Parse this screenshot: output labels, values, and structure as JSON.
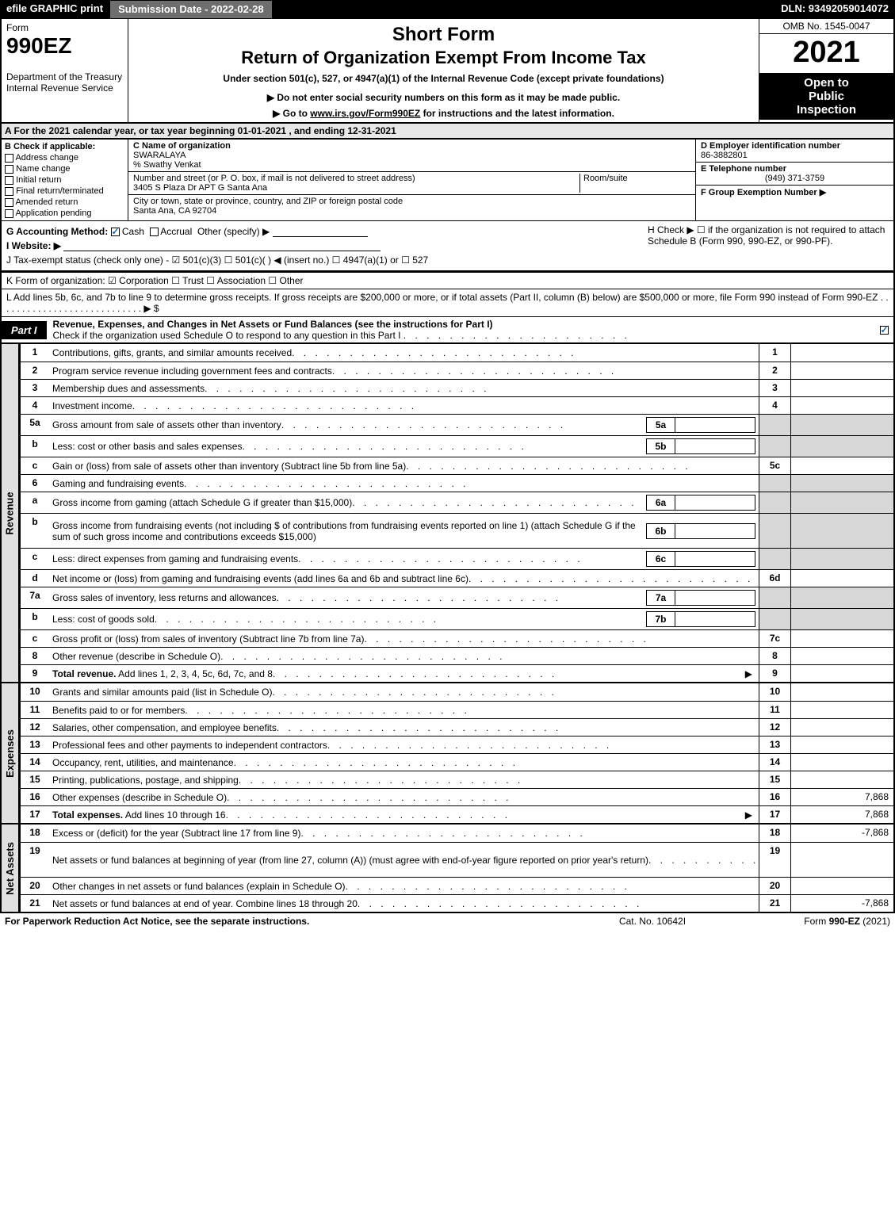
{
  "top_bar": {
    "efile": "efile GRAPHIC print",
    "submission": "Submission Date - 2022-02-28",
    "dln": "DLN: 93492059014072"
  },
  "header": {
    "form_word": "Form",
    "form_name": "990EZ",
    "dept": "Department of the Treasury\nInternal Revenue Service",
    "short_form": "Short Form",
    "return_title": "Return of Organization Exempt From Income Tax",
    "under": "Under section 501(c), 527, or 4947(a)(1) of the Internal Revenue Code (except private foundations)",
    "sub1": "▶ Do not enter social security numbers on this form as it may be made public.",
    "sub2_pre": "▶ Go to ",
    "sub2_link": "www.irs.gov/Form990EZ",
    "sub2_post": " for instructions and the latest information.",
    "omb": "OMB No. 1545-0047",
    "year": "2021",
    "open1": "Open to",
    "open2": "Public",
    "open3": "Inspection"
  },
  "row_A": "A  For the 2021 calendar year, or tax year beginning 01-01-2021 , and ending 12-31-2021",
  "B": {
    "hdr": "B  Check if applicable:",
    "opts": [
      "Address change",
      "Name change",
      "Initial return",
      "Final return/terminated",
      "Amended return",
      "Application pending"
    ]
  },
  "C": {
    "name_lbl": "C Name of organization",
    "name": "SWARALAYA",
    "care_of": "% Swathy Venkat",
    "addr_lbl": "Number and street (or P. O. box, if mail is not delivered to street address)",
    "addr": "3405 S Plaza Dr APT G Santa Ana",
    "room_lbl": "Room/suite",
    "city_lbl": "City or town, state or province, country, and ZIP or foreign postal code",
    "city": "Santa Ana, CA  92704"
  },
  "DEF": {
    "D_lbl": "D Employer identification number",
    "D_val": "86-3882801",
    "E_lbl": "E Telephone number",
    "E_val": "(949) 371-3759",
    "F_lbl": "F Group Exemption Number  ▶"
  },
  "G": {
    "label": "G Accounting Method:",
    "cash": "Cash",
    "accrual": "Accrual",
    "other": "Other (specify) ▶"
  },
  "H": "H  Check ▶  ☐  if the organization is not required to attach Schedule B (Form 990, 990-EZ, or 990-PF).",
  "I": "I Website: ▶",
  "J": "J Tax-exempt status (check only one) -  ☑ 501(c)(3)  ☐ 501(c)(  ) ◀ (insert no.)  ☐ 4947(a)(1) or  ☐ 527",
  "K": "K Form of organization:   ☑ Corporation   ☐ Trust   ☐ Association   ☐ Other",
  "L": "L Add lines 5b, 6c, and 7b to line 9 to determine gross receipts. If gross receipts are $200,000 or more, or if total assets (Part II, column (B) below) are $500,000 or more, file Form 990 instead of Form 990-EZ  . . . . . . . . . . . . . . . . . . . . . . . . . . . .  ▶ $",
  "part1": {
    "tab": "Part I",
    "title": "Revenue, Expenses, and Changes in Net Assets or Fund Balances (see the instructions for Part I)",
    "check": "Check if the organization used Schedule O to respond to any question in this Part I"
  },
  "sections": {
    "revenue": "Revenue",
    "expenses": "Expenses",
    "netassets": "Net Assets"
  },
  "lines": [
    {
      "n": "1",
      "desc": "Contributions, gifts, grants, and similar amounts received",
      "rt": "1",
      "val": ""
    },
    {
      "n": "2",
      "desc": "Program service revenue including government fees and contracts",
      "rt": "2",
      "val": ""
    },
    {
      "n": "3",
      "desc": "Membership dues and assessments",
      "rt": "3",
      "val": ""
    },
    {
      "n": "4",
      "desc": "Investment income",
      "rt": "4",
      "val": ""
    },
    {
      "n": "5a",
      "desc": "Gross amount from sale of assets other than inventory",
      "sub": "5a",
      "shade": true
    },
    {
      "n": "b",
      "desc": "Less: cost or other basis and sales expenses",
      "sub": "5b",
      "shade": true
    },
    {
      "n": "c",
      "desc": "Gain or (loss) from sale of assets other than inventory (Subtract line 5b from line 5a)",
      "rt": "5c",
      "val": ""
    },
    {
      "n": "6",
      "desc": "Gaming and fundraising events",
      "shade": true
    },
    {
      "n": "a",
      "desc": "Gross income from gaming (attach Schedule G if greater than $15,000)",
      "sub": "6a",
      "shade": true
    },
    {
      "n": "b",
      "desc": "Gross income from fundraising events (not including $                    of contributions from fundraising events reported on line 1) (attach Schedule G if the sum of such gross income and contributions exceeds $15,000)",
      "sub": "6b",
      "shade": true,
      "tall": true
    },
    {
      "n": "c",
      "desc": "Less: direct expenses from gaming and fundraising events",
      "sub": "6c",
      "shade": true
    },
    {
      "n": "d",
      "desc": "Net income or (loss) from gaming and fundraising events (add lines 6a and 6b and subtract line 6c)",
      "rt": "6d",
      "val": ""
    },
    {
      "n": "7a",
      "desc": "Gross sales of inventory, less returns and allowances",
      "sub": "7a",
      "shade": true
    },
    {
      "n": "b",
      "desc": "Less: cost of goods sold",
      "sub": "7b",
      "shade": true
    },
    {
      "n": "c",
      "desc": "Gross profit or (loss) from sales of inventory (Subtract line 7b from line 7a)",
      "rt": "7c",
      "val": ""
    },
    {
      "n": "8",
      "desc": "Other revenue (describe in Schedule O)",
      "rt": "8",
      "val": ""
    },
    {
      "n": "9",
      "desc": "Total revenue. Add lines 1, 2, 3, 4, 5c, 6d, 7c, and 8",
      "rt": "9",
      "val": "",
      "bold": true,
      "arrow": true
    }
  ],
  "exp_lines": [
    {
      "n": "10",
      "desc": "Grants and similar amounts paid (list in Schedule O)",
      "rt": "10",
      "val": ""
    },
    {
      "n": "11",
      "desc": "Benefits paid to or for members",
      "rt": "11",
      "val": ""
    },
    {
      "n": "12",
      "desc": "Salaries, other compensation, and employee benefits",
      "rt": "12",
      "val": ""
    },
    {
      "n": "13",
      "desc": "Professional fees and other payments to independent contractors",
      "rt": "13",
      "val": ""
    },
    {
      "n": "14",
      "desc": "Occupancy, rent, utilities, and maintenance",
      "rt": "14",
      "val": ""
    },
    {
      "n": "15",
      "desc": "Printing, publications, postage, and shipping",
      "rt": "15",
      "val": ""
    },
    {
      "n": "16",
      "desc": "Other expenses (describe in Schedule O)",
      "rt": "16",
      "val": "7,868"
    },
    {
      "n": "17",
      "desc": "Total expenses. Add lines 10 through 16",
      "rt": "17",
      "val": "7,868",
      "bold": true,
      "arrow": true
    }
  ],
  "na_lines": [
    {
      "n": "18",
      "desc": "Excess or (deficit) for the year (Subtract line 17 from line 9)",
      "rt": "18",
      "val": "-7,868"
    },
    {
      "n": "19",
      "desc": "Net assets or fund balances at beginning of year (from line 27, column (A)) (must agree with end-of-year figure reported on prior year's return)",
      "rt": "19",
      "val": "",
      "tall": true
    },
    {
      "n": "20",
      "desc": "Other changes in net assets or fund balances (explain in Schedule O)",
      "rt": "20",
      "val": ""
    },
    {
      "n": "21",
      "desc": "Net assets or fund balances at end of year. Combine lines 18 through 20",
      "rt": "21",
      "val": "-7,868"
    }
  ],
  "footer": {
    "left": "For Paperwork Reduction Act Notice, see the separate instructions.",
    "mid": "Cat. No. 10642I",
    "right_pre": "Form ",
    "right_form": "990-EZ",
    "right_post": " (2021)"
  },
  "colors": {
    "black": "#000000",
    "gray_bg": "#e7e7e7",
    "shade": "#d8d8d8"
  }
}
